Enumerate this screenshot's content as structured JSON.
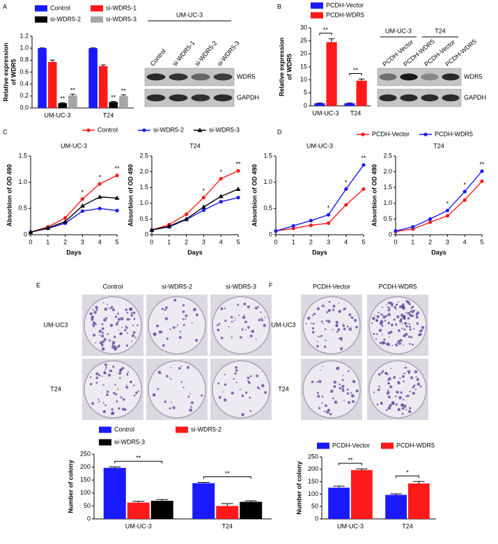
{
  "panel_labels": [
    "A",
    "B",
    "C",
    "D",
    "E",
    "F"
  ],
  "blots": [
    {
      "headers": [
        "UM-UC-3"
      ],
      "lanes": [
        "Control",
        "si-WDR5-1",
        "si-WDR5-2",
        "si-WDR5-3"
      ],
      "rows": [
        "WDR5",
        "GAPDH"
      ]
    },
    {
      "headers": [
        "UM-UC-3",
        "T24"
      ],
      "lanes": [
        "PCDH-Vector",
        "PCDH-WDR5",
        "PCDH-Vector",
        "PCDH-WDR5"
      ],
      "rows": [
        "WDR5",
        "GAPDH"
      ]
    }
  ],
  "colonies": [
    {
      "columns": [
        "Control",
        "si-WDR5-2",
        "si-WDR5-3"
      ],
      "rows": [
        "UM-UC3",
        "T24"
      ]
    },
    {
      "columns": [
        "PCDH-Vector",
        "PCDH-WDR5"
      ],
      "rows": [
        "UM-UC3",
        "T24"
      ]
    }
  ],
  "chart_data": [
    {
      "type": "bar",
      "categories": [
        "UM-UC-3",
        "T24"
      ],
      "ylabel": [
        "Relative expression",
        "of WDR5"
      ],
      "ylim": [
        0,
        1.2
      ],
      "yticks": [
        {
          "value": 0,
          "label": "0.0"
        },
        0.2,
        0.4,
        0.6,
        0.8,
        {
          "value": 1,
          "label": "1.0"
        },
        1.2
      ],
      "series": [
        {
          "name": "Control",
          "color": "#1a1aff",
          "values": [
            1,
            1
          ],
          "errors": [
            0.005,
            0.005
          ]
        },
        {
          "name": "si-WDR5-1",
          "color": "#ff1a1a",
          "values": [
            0.77,
            0.7
          ],
          "errors": [
            0.03,
            0.02
          ]
        },
        {
          "name": "si-WDR5-2",
          "color": "#000000",
          "values": [
            0.08,
            0.1
          ],
          "errors": [
            0.01,
            0.01
          ],
          "significance": [
            "**",
            "**"
          ]
        },
        {
          "name": "si-WDR5-3",
          "color": "#a6a6a6",
          "values": [
            0.21,
            0.2
          ],
          "errors": [
            0.02,
            0.02
          ],
          "significance": [
            "**",
            "**"
          ]
        }
      ]
    },
    {
      "type": "bar",
      "categories": [
        "UM-UC-3",
        "T24"
      ],
      "ylabel": [
        "Relative expression",
        "of WDR5"
      ],
      "ylim": [
        0,
        30
      ],
      "yticks": [
        0,
        5,
        10,
        15,
        20,
        25,
        30
      ],
      "significance": [
        "**",
        "**"
      ],
      "series": [
        {
          "name": "PCDH-Vector",
          "color": "#1a1aff",
          "values": [
            1,
            1
          ],
          "errors": [
            0.1,
            0.1
          ]
        },
        {
          "name": "PCDH-WDR5",
          "color": "#ff1a1a",
          "values": [
            24.5,
            9.7
          ],
          "errors": [
            1.3,
            0.6
          ]
        }
      ]
    },
    {
      "type": "line",
      "xlabel": "Days",
      "ylabel": "Absorbion of OD 490",
      "x": [
        0,
        1,
        2,
        3,
        4,
        5
      ],
      "xlim": [
        0,
        5
      ],
      "xticks": [
        0,
        1,
        2,
        3,
        4,
        5
      ],
      "series": [
        {
          "name": "Control",
          "color": "#ff1a1a",
          "marker": "circle"
        },
        {
          "name": "si-WDR5-2",
          "color": "#1a1aff",
          "marker": "circle"
        },
        {
          "name": "si-WDR5-3",
          "color": "#000000",
          "marker": "triangle"
        }
      ],
      "panels": [
        {
          "title": "UM-UC-3",
          "ylim": [
            0,
            1.5
          ],
          "yticks": [
            0,
            0.5,
            {
              "value": 1,
              "label": "1.0"
            },
            1.5
          ],
          "values": [
            [
              0.05,
              0.15,
              0.32,
              0.68,
              0.97,
              1.13
            ],
            [
              0.05,
              0.12,
              0.22,
              0.45,
              0.5,
              0.46
            ],
            [
              0.05,
              0.13,
              0.25,
              0.55,
              0.72,
              0.7
            ]
          ],
          "significance": [
            null,
            null,
            null,
            "*",
            "*",
            "**"
          ]
        },
        {
          "title": "T24",
          "ylim": [
            0,
            2.5
          ],
          "yticks": [
            0,
            0.5,
            {
              "value": 1,
              "label": "1.0"
            },
            1.5,
            {
              "value": 2,
              "label": "2.0"
            },
            2.5
          ],
          "values": [
            [
              0.15,
              0.32,
              0.65,
              1.18,
              1.78,
              2.03
            ],
            [
              0.15,
              0.25,
              0.48,
              0.78,
              1.05,
              1.18
            ],
            [
              0.15,
              0.27,
              0.5,
              0.88,
              1.22,
              1.45
            ]
          ],
          "significance": [
            null,
            null,
            null,
            "*",
            "*",
            "**"
          ]
        }
      ]
    },
    {
      "type": "line",
      "xlabel": "Days",
      "ylabel": "Absorbion of OD 490",
      "x": [
        0,
        1,
        2,
        3,
        4,
        5
      ],
      "xlim": [
        0,
        5
      ],
      "xticks": [
        0,
        1,
        2,
        3,
        4,
        5
      ],
      "series": [
        {
          "name": "PCDH-Vector",
          "color": "#ff1a1a",
          "marker": "circle"
        },
        {
          "name": "PCDH-WDR5",
          "color": "#1a1aff",
          "marker": "circle"
        }
      ],
      "panels": [
        {
          "title": "UM-UC-3",
          "ylim": [
            0,
            1.5
          ],
          "yticks": [
            0,
            0.5,
            {
              "value": 1,
              "label": "1.0"
            },
            1.5
          ],
          "values": [
            [
              0.07,
              0.12,
              0.18,
              0.22,
              0.57,
              0.87
            ],
            [
              0.07,
              0.17,
              0.27,
              0.38,
              0.87,
              1.33
            ]
          ],
          "significance": [
            null,
            null,
            null,
            "*",
            "*",
            "**"
          ]
        },
        {
          "title": "T24",
          "ylim": [
            0,
            2.5
          ],
          "yticks": [
            0,
            0.5,
            {
              "value": 1,
              "label": "1.0"
            },
            1.5,
            {
              "value": 2,
              "label": "2.0"
            },
            2.5
          ],
          "values": [
            [
              0.1,
              0.18,
              0.4,
              0.6,
              1.1,
              1.7
            ],
            [
              0.12,
              0.25,
              0.5,
              0.77,
              1.37,
              2.02
            ]
          ],
          "significance": [
            null,
            null,
            null,
            "*",
            "*",
            "**"
          ]
        }
      ]
    },
    {
      "type": "bar",
      "categories": [
        "UM-UC-3",
        "T24"
      ],
      "ylabel": [
        "Number of colony"
      ],
      "ylim": [
        0,
        250
      ],
      "yticks": [
        0,
        50,
        100,
        150,
        200,
        250
      ],
      "significance": [
        "**",
        "**"
      ],
      "series": [
        {
          "name": "Control",
          "color": "#1a1aff",
          "values": [
            197,
            138
          ],
          "errors": [
            4,
            3
          ]
        },
        {
          "name": "si-WDR5-2",
          "color": "#ff1a1a",
          "values": [
            63,
            50
          ],
          "errors": [
            5,
            9
          ]
        },
        {
          "name": "si-WDR5-3",
          "color": "#000000",
          "values": [
            70,
            66
          ],
          "errors": [
            5,
            4
          ]
        }
      ]
    },
    {
      "type": "bar",
      "categories": [
        "UM-UC-3",
        "T24"
      ],
      "ylabel": [
        "Number of colony"
      ],
      "ylim": [
        0,
        250
      ],
      "yticks": [
        0,
        50,
        100,
        150,
        200,
        250
      ],
      "significance": [
        "**",
        "*"
      ],
      "series": [
        {
          "name": "PCDH-Vector",
          "color": "#1a1aff",
          "values": [
            126,
            97
          ],
          "errors": [
            6,
            4
          ]
        },
        {
          "name": "PCDH-WDR5",
          "color": "#ff1a1a",
          "values": [
            197,
            143
          ],
          "errors": [
            5,
            8
          ]
        }
      ]
    }
  ]
}
